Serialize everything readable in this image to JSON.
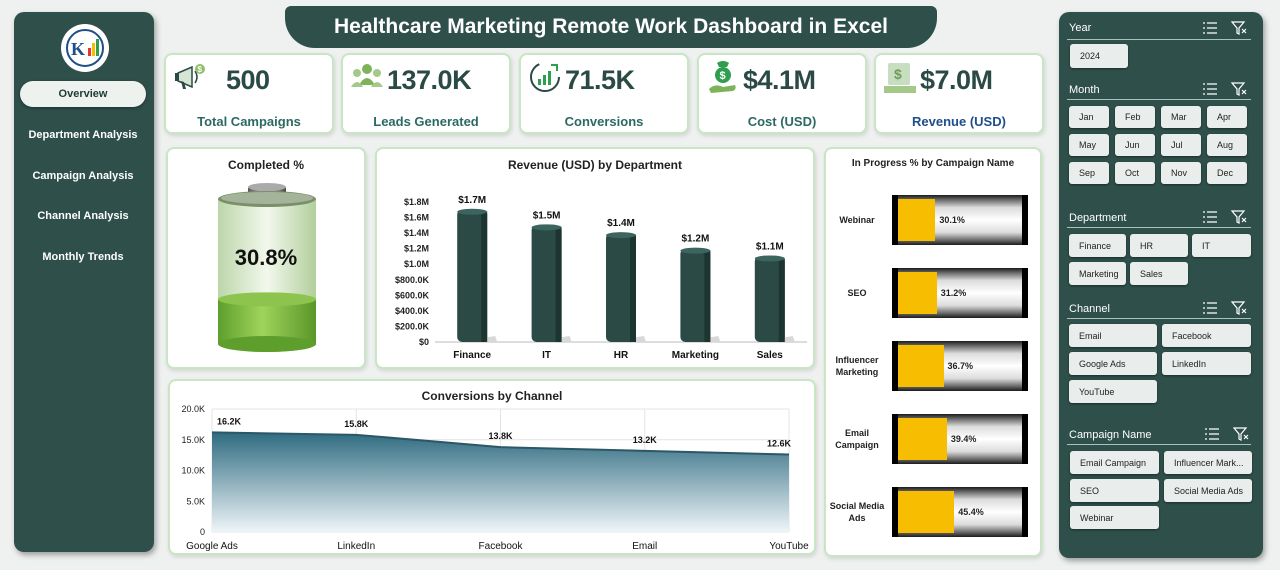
{
  "title": "Healthcare Marketing Remote Work Dashboard in Excel",
  "nav": {
    "items": [
      {
        "label": "Overview",
        "active": true
      },
      {
        "label": "Department Analysis",
        "active": false
      },
      {
        "label": "Campaign Analysis",
        "active": false
      },
      {
        "label": "Channel Analysis",
        "active": false
      },
      {
        "label": "Monthly Trends",
        "active": false
      }
    ]
  },
  "kpis": [
    {
      "value": "500",
      "label": "Total Campaigns",
      "icon": "megaphone-icon"
    },
    {
      "value": "137.0K",
      "label": "Leads Generated",
      "icon": "people-icon"
    },
    {
      "value": "71.5K",
      "label": "Conversions",
      "icon": "growth-chart-icon"
    },
    {
      "value": "$4.1M",
      "label": "Cost (USD)",
      "icon": "money-hand-icon"
    },
    {
      "value": "$7.0M",
      "label": "Revenue (USD)",
      "icon": "revenue-icon"
    }
  ],
  "completed": {
    "title": "Completed %",
    "value": "30.8%",
    "fraction": 0.308
  },
  "chart_data": [
    {
      "type": "bar",
      "title": "Revenue (USD) by Department",
      "categories": [
        "Finance",
        "IT",
        "HR",
        "Marketing",
        "Sales"
      ],
      "values": [
        1.7,
        1.5,
        1.4,
        1.2,
        1.1
      ],
      "data_labels": [
        "$1.7M",
        "$1.5M",
        "$1.4M",
        "$1.2M",
        "$1.1M"
      ],
      "yticks": [
        "$1.8M",
        "$1.6M",
        "$1.4M",
        "$1.2M",
        "$1.0M",
        "$800.0K",
        "$600.0K",
        "$400.0K",
        "$200.0K",
        "$0"
      ],
      "ylim": [
        0,
        1.8
      ],
      "color": "#2b4a45"
    },
    {
      "type": "area",
      "title": "Conversions by Channel",
      "categories": [
        "Google Ads",
        "LinkedIn",
        "Facebook",
        "Email",
        "YouTube"
      ],
      "values": [
        16.2,
        15.8,
        13.8,
        13.2,
        12.6
      ],
      "data_labels": [
        "16.2K",
        "15.8K",
        "13.8K",
        "13.2K",
        "12.6K"
      ],
      "yticks": [
        "20.0K",
        "15.0K",
        "10.0K",
        "5.0K",
        "0"
      ],
      "ylim": [
        0,
        20
      ],
      "grid": true
    },
    {
      "type": "bar",
      "title": "In Progress % by Campaign Name",
      "categories": [
        "Webinar",
        "SEO",
        "Influencer Marketing",
        "Email Campaign",
        "Social Media Ads"
      ],
      "values": [
        30.1,
        31.2,
        36.7,
        39.4,
        45.4
      ],
      "data_labels": [
        "30.1%",
        "31.2%",
        "36.7%",
        "39.4%",
        "45.4%"
      ],
      "xlim": [
        0,
        100
      ],
      "color": "#f7bd00"
    }
  ],
  "slicers": {
    "year": {
      "title": "Year",
      "items": [
        "2024"
      ]
    },
    "month": {
      "title": "Month",
      "items": [
        "Jan",
        "Feb",
        "Mar",
        "Apr",
        "May",
        "Jun",
        "Jul",
        "Aug",
        "Sep",
        "Oct",
        "Nov",
        "Dec"
      ]
    },
    "department": {
      "title": "Department",
      "items": [
        "Finance",
        "HR",
        "IT",
        "Marketing",
        "Sales"
      ]
    },
    "channel": {
      "title": "Channel",
      "items": [
        "Email",
        "Facebook",
        "Google Ads",
        "LinkedIn",
        "YouTube"
      ]
    },
    "campaign": {
      "title": "Campaign Name",
      "items": [
        "Email Campaign",
        "Influencer Mark...",
        "SEO",
        "Social Media Ads",
        "Webinar"
      ]
    }
  }
}
